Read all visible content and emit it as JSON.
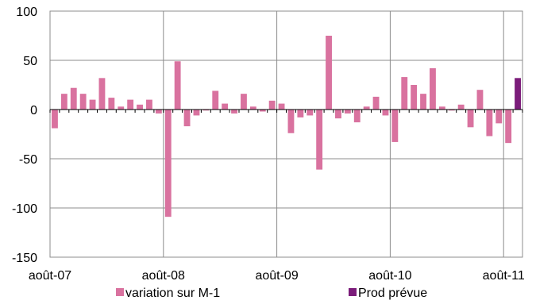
{
  "chart_data": {
    "type": "bar",
    "ylim": [
      -150,
      100
    ],
    "yticks": [
      100,
      50,
      0,
      -50,
      -100,
      -150
    ],
    "grid": true,
    "legend_position": "bottom",
    "x_tick_labels": [
      "août-07",
      "août-08",
      "août-09",
      "août-10",
      "août-11"
    ],
    "x_tick_indices": [
      0,
      12,
      24,
      36,
      48
    ],
    "categories": [
      "août-07",
      "sept-07",
      "oct-07",
      "nov-07",
      "déc-07",
      "janv-08",
      "févr-08",
      "mars-08",
      "avr-08",
      "mai-08",
      "juin-08",
      "juil-08",
      "août-08",
      "sept-08",
      "oct-08",
      "nov-08",
      "déc-08",
      "janv-09",
      "févr-09",
      "mars-09",
      "avr-09",
      "mai-09",
      "juin-09",
      "juil-09",
      "août-09",
      "sept-09",
      "oct-09",
      "nov-09",
      "déc-09",
      "janv-10",
      "févr-10",
      "mars-10",
      "avr-10",
      "mai-10",
      "juin-10",
      "juil-10",
      "août-10",
      "sept-10",
      "oct-10",
      "nov-10",
      "déc-10",
      "janv-11",
      "févr-11",
      "mars-11",
      "avr-11",
      "mai-11",
      "juin-11",
      "juil-11",
      "août-11",
      "sept-11"
    ],
    "series": [
      {
        "name": "variation sur M-1",
        "color": "#D9729F",
        "values": [
          -19,
          16,
          22,
          16,
          10,
          32,
          12,
          3,
          10,
          5,
          10,
          -4,
          -109,
          49,
          -17,
          -6,
          -1,
          19,
          6,
          -4,
          16,
          3,
          -2,
          9,
          6,
          -24,
          -8,
          -6,
          -61,
          75,
          -9,
          -4,
          -13,
          3,
          13,
          -6,
          -33,
          33,
          25,
          16,
          42,
          3,
          -1,
          5,
          -18,
          20,
          -27,
          -14,
          -34,
          null
        ]
      },
      {
        "name": "Prod prévue",
        "color": "#7B1C7A",
        "values": [
          null,
          null,
          null,
          null,
          null,
          null,
          null,
          null,
          null,
          null,
          null,
          null,
          null,
          null,
          null,
          null,
          null,
          null,
          null,
          null,
          null,
          null,
          null,
          null,
          null,
          null,
          null,
          null,
          null,
          null,
          null,
          null,
          null,
          null,
          null,
          null,
          null,
          null,
          null,
          null,
          null,
          null,
          null,
          null,
          null,
          null,
          null,
          null,
          null,
          32
        ]
      }
    ]
  }
}
